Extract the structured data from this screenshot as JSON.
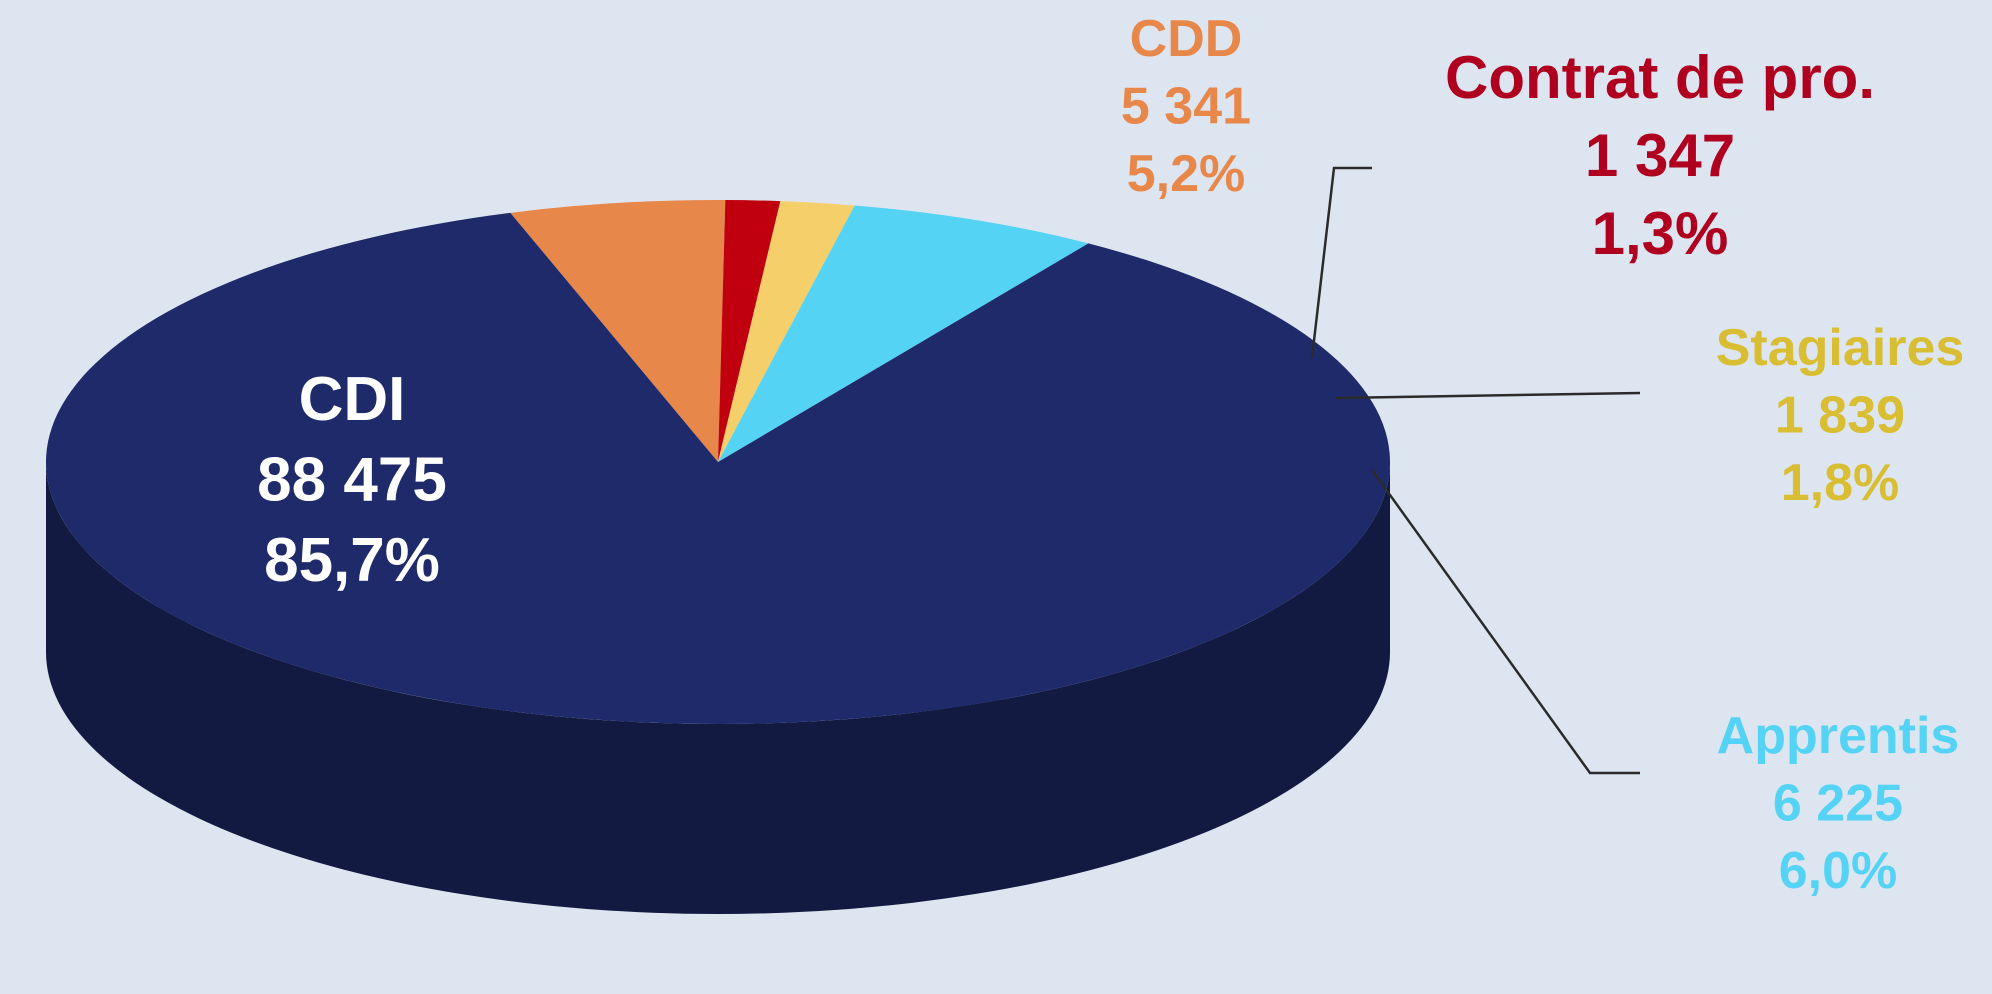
{
  "chart_data": {
    "type": "pie",
    "style": "3d",
    "slices": [
      {
        "category": "CDI",
        "value": 88475,
        "value_label": "88 475",
        "percent": 85.7,
        "percent_label": "85,7%",
        "color": "#1f2a6b",
        "label_color": "#ffffff"
      },
      {
        "category": "CDD",
        "value": 5341,
        "value_label": "5 341",
        "percent": 5.2,
        "percent_label": "5,2%",
        "color": "#e8874a",
        "label_color": "#e8874a"
      },
      {
        "category": "Contrat de pro.",
        "value": 1347,
        "value_label": "1 347",
        "percent": 1.3,
        "percent_label": "1,3%",
        "color": "#c0000f",
        "label_color": "#b00020"
      },
      {
        "category": "Stagiaires",
        "value": 1839,
        "value_label": "1 839",
        "percent": 1.8,
        "percent_label": "1,8%",
        "color": "#f5d06a",
        "label_color": "#d9bd32"
      },
      {
        "category": "Apprentis",
        "value": 6225,
        "value_label": "6 225",
        "percent": 6.0,
        "percent_label": "6,0%",
        "color": "#55d3f5",
        "label_color": "#55d3f5"
      }
    ],
    "colors": {
      "background": "#dde6f0",
      "side_shade": "#121a4a",
      "leader_line": "#2b2b2b"
    }
  }
}
